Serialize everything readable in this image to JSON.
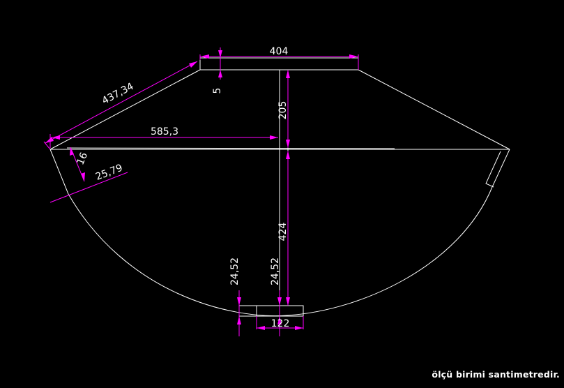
{
  "colors": {
    "background": "#000000",
    "geometry": "#ffffff",
    "dimension": "#ff00ff"
  },
  "dimensions": {
    "top_width": "404",
    "top_thickness": "5",
    "slant": "437,34",
    "upper_height": "205",
    "half_span": "585,3",
    "end_offset": "16",
    "end_width": "25,79",
    "lower_height": "424",
    "base_left": "24,52",
    "base_right": "24,52",
    "base_width": "122"
  },
  "note": "ölçü birimi santimetredir."
}
